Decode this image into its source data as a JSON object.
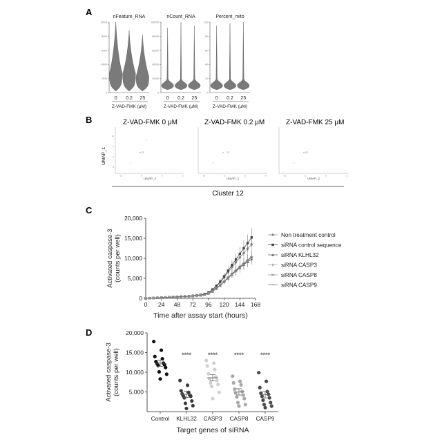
{
  "panels": {
    "a": "A",
    "b": "B",
    "c": "C",
    "d": "D"
  },
  "panel_a": {
    "xlabel": "Z-VAD-FMK (μM)",
    "groups": [
      "0",
      "0.2",
      "25"
    ],
    "plots": [
      {
        "title": "nFeature_RNA",
        "ylim": [
          0,
          10000
        ],
        "yticks": [
          "0",
          "2000",
          "4000",
          "6000",
          "8000",
          "10000"
        ],
        "violins": [
          {
            "median": 2200,
            "max": 10000
          },
          {
            "median": 2100,
            "max": 8800
          },
          {
            "median": 1700,
            "max": 8200
          }
        ]
      },
      {
        "title": "nCount_RNA",
        "ylim": [
          0,
          100000
        ],
        "yticks": [
          "0",
          "20000",
          "40000",
          "60000",
          "80000",
          "100000"
        ],
        "violins": [
          {
            "median": 3000,
            "max": 92000
          },
          {
            "median": 3000,
            "max": 100000
          },
          {
            "median": 3000,
            "max": 95000
          }
        ]
      },
      {
        "title": "Percent_mito",
        "ylim": [
          0,
          100
        ],
        "yticks": [
          "0",
          "20",
          "40",
          "60",
          "80",
          "100"
        ],
        "violins": [
          {
            "median": 4,
            "max": 95
          },
          {
            "median": 4,
            "max": 98
          },
          {
            "median": 4,
            "max": 100
          }
        ]
      }
    ],
    "color": "#7a7a7a"
  },
  "panel_b": {
    "titles": [
      "Z-VAD-FMK  0 μM",
      "Z-VAD-FMK  0.2 μM",
      "Z-VAD-FMK  25 μM"
    ],
    "ylabel": "UMAP_1",
    "xlabel": "UMAP_2",
    "cluster_label": "12",
    "footer": "Cluster 12",
    "xticks": [
      "-10",
      "-5",
      "0",
      "5"
    ],
    "yticks": [
      "-5",
      "0",
      "5",
      "10"
    ]
  },
  "chart_data": [
    {
      "type": "line",
      "ylabel_line1": "Activated caspase-3",
      "ylabel_line2": "(counts per well)",
      "xlabel": "Time after assay start (hours)",
      "xlim": [
        0,
        168
      ],
      "ylim": [
        0,
        20000
      ],
      "xticks": [
        "0",
        "24",
        "48",
        "72",
        "96",
        "120",
        "144",
        "168"
      ],
      "yticks": [
        "0",
        "5,000",
        "10,000",
        "15,000",
        "20,000"
      ],
      "x": [
        0,
        6,
        12,
        18,
        24,
        30,
        36,
        42,
        48,
        54,
        60,
        66,
        72,
        78,
        84,
        90,
        96,
        102,
        108,
        114,
        120,
        126,
        132,
        138,
        144,
        150,
        156,
        162
      ],
      "series": [
        {
          "name": "Non treatment control",
          "marker": "circle",
          "values": [
            0,
            50,
            100,
            150,
            200,
            250,
            300,
            350,
            400,
            450,
            500,
            550,
            600,
            700,
            800,
            1000,
            1400,
            2000,
            2900,
            4000,
            5200,
            6500,
            7800,
            9000,
            10200,
            11300,
            12400,
            13500
          ]
        },
        {
          "name": "siRNA control sequence",
          "marker": "square",
          "values": [
            0,
            50,
            100,
            150,
            200,
            250,
            300,
            350,
            400,
            450,
            500,
            550,
            650,
            750,
            900,
            1100,
            1500,
            2200,
            3100,
            4200,
            5500,
            6900,
            8300,
            9700,
            11100,
            12500,
            13800,
            15200
          ]
        },
        {
          "name": "siRNA KLHL32",
          "marker": "triangle",
          "values": [
            0,
            40,
            80,
            120,
            160,
            200,
            250,
            300,
            350,
            400,
            450,
            500,
            550,
            650,
            750,
            900,
            1200,
            1700,
            2400,
            3200,
            4100,
            5000,
            5900,
            6800,
            7600,
            8400,
            9100,
            9800
          ]
        },
        {
          "name": "siRNA  CASP3",
          "marker": "diamond",
          "values": [
            0,
            40,
            80,
            120,
            160,
            200,
            250,
            300,
            350,
            400,
            450,
            500,
            550,
            650,
            750,
            900,
            1250,
            1800,
            2500,
            3400,
            4300,
            5300,
            6200,
            7100,
            8000,
            8800,
            9600,
            10400
          ]
        },
        {
          "name": "siRNA  CASP8",
          "marker": "cross",
          "values": [
            0,
            40,
            80,
            120,
            160,
            200,
            250,
            300,
            350,
            400,
            450,
            500,
            550,
            650,
            750,
            900,
            1200,
            1700,
            2400,
            3200,
            4100,
            5100,
            6000,
            6900,
            7800,
            8600,
            9400,
            10200
          ]
        },
        {
          "name": "siRNA CASP9",
          "marker": "dash",
          "values": [
            0,
            40,
            80,
            120,
            160,
            200,
            250,
            300,
            350,
            400,
            450,
            500,
            550,
            650,
            750,
            900,
            1250,
            1800,
            2500,
            3300,
            4200,
            5200,
            6100,
            7000,
            7900,
            8700,
            9500,
            10300
          ]
        }
      ],
      "legend": "right"
    },
    {
      "type": "scatter",
      "ylabel_line1": "Activated caspase-3",
      "ylabel_line2": "(counts per well)",
      "xlabel": "Target genes of siRNA",
      "ylim": [
        0,
        20000
      ],
      "yticks": [
        "5,000",
        "10,000",
        "15,000",
        "20,000"
      ],
      "categories": [
        "Control",
        "KLHL32",
        "CASP3",
        "CASP8",
        "CASP9"
      ],
      "significance": [
        "",
        "****",
        "****",
        "****",
        "****"
      ],
      "colors": [
        "#111111",
        "#3a3a3a",
        "#d0d0d0",
        "#a8a8a8",
        "#4a4a4a"
      ],
      "means": [
        12300,
        4400,
        8600,
        5000,
        4300
      ],
      "points": [
        [
          17800,
          15600,
          14000,
          13400,
          12700,
          12300,
          12200,
          11900,
          11700,
          11200,
          10100,
          9500,
          8300
        ],
        [
          7900,
          6700,
          5300,
          4900,
          4500,
          4200,
          4000,
          3900,
          3500,
          2700,
          2100,
          1500,
          800
        ],
        [
          13000,
          12300,
          11600,
          10700,
          9600,
          8800,
          8300,
          7900,
          7300,
          6900,
          6400,
          4900,
          3300
        ],
        [
          9000,
          7700,
          7300,
          6800,
          5700,
          5100,
          4700,
          4200,
          3700,
          3300,
          2300,
          1800,
          1400
        ],
        [
          9900,
          7700,
          6100,
          5100,
          4700,
          4400,
          3900,
          3500,
          2900,
          2300,
          1800,
          1400,
          1000
        ]
      ]
    }
  ]
}
